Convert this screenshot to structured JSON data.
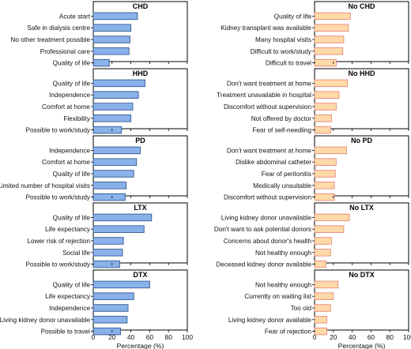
{
  "chart_data": [
    {
      "type": "bar",
      "orientation": "horizontal",
      "title": "CHD",
      "categories": [
        "Acute start",
        "Safe in dialysis centre",
        "No other treatment possible",
        "Professional care",
        "Quality of life"
      ],
      "values": [
        47,
        40,
        39,
        38,
        17
      ],
      "xlim": [
        0,
        100
      ],
      "color": "#8ab2ea",
      "edge_color": "#33598f"
    },
    {
      "type": "bar",
      "orientation": "horizontal",
      "title": "No CHD",
      "categories": [
        "Quality of life",
        "Kidney transplant was available",
        "Many hospital visits",
        "Difficult to work/study",
        "Difficult to travel"
      ],
      "values": [
        38,
        36,
        31,
        30,
        23
      ],
      "xlim": [
        0,
        100
      ],
      "color": "#ffd9a8",
      "edge_color": "#e58a7c"
    },
    {
      "type": "bar",
      "orientation": "horizontal",
      "title": "HHD",
      "categories": [
        "Quality of life",
        "Independence",
        "Comfort at home",
        "Flexibility",
        "Possible to work/study"
      ],
      "values": [
        55,
        48,
        42,
        40,
        30
      ],
      "xlim": [
        0,
        100
      ],
      "color": "#8ab2ea",
      "edge_color": "#33598f"
    },
    {
      "type": "bar",
      "orientation": "horizontal",
      "title": "No HHD",
      "categories": [
        "Don't want treatment at home",
        "Treatment unavailable in hospital",
        "Discomfort without supervision",
        "Not offered by doctor",
        "Fear of self-needling"
      ],
      "values": [
        35,
        26,
        23,
        18,
        17
      ],
      "xlim": [
        0,
        100
      ],
      "color": "#ffd9a8",
      "edge_color": "#e58a7c"
    },
    {
      "type": "bar",
      "orientation": "horizontal",
      "title": "PD",
      "categories": [
        "Independence",
        "Comfort at home",
        "Quality of life",
        "Limited number of hospital visits",
        "Possible to work/study"
      ],
      "values": [
        50,
        46,
        43,
        35,
        34
      ],
      "xlim": [
        0,
        100
      ],
      "color": "#8ab2ea",
      "edge_color": "#33598f"
    },
    {
      "type": "bar",
      "orientation": "horizontal",
      "title": "No PD",
      "categories": [
        "Don't want treatment at home",
        "Dislike abdominal catheter",
        "Fear of peritonitis",
        "Medically unsuitable",
        "Discomfort without supervision"
      ],
      "values": [
        34,
        23,
        22,
        21,
        21
      ],
      "xlim": [
        0,
        100
      ],
      "color": "#ffd9a8",
      "edge_color": "#e58a7c"
    },
    {
      "type": "bar",
      "orientation": "horizontal",
      "title": "LTX",
      "categories": [
        "Quality of life",
        "Life expectancy",
        "Lower risk of rejection",
        "Social life",
        "Possible to work/study"
      ],
      "values": [
        62,
        54,
        32,
        31,
        28
      ],
      "xlim": [
        0,
        100
      ],
      "color": "#8ab2ea",
      "edge_color": "#33598f"
    },
    {
      "type": "bar",
      "orientation": "horizontal",
      "title": "No LTX",
      "categories": [
        "Living kidney donor unavailable",
        "Don't want to ask potential donors",
        "Concerns about donor's health",
        "Not healthy enough",
        "Deceased kidney donor available"
      ],
      "values": [
        37,
        31,
        18,
        17,
        12
      ],
      "xlim": [
        0,
        100
      ],
      "color": "#ffd9a8",
      "edge_color": "#e58a7c"
    },
    {
      "type": "bar",
      "orientation": "horizontal",
      "title": "DTX",
      "categories": [
        "Quality of life",
        "Life expectancy",
        "Independence",
        "Living kidney donor unavailable",
        "Possible to travel"
      ],
      "values": [
        60,
        43,
        37,
        36,
        29
      ],
      "xlim": [
        0,
        100
      ],
      "color": "#8ab2ea",
      "edge_color": "#33598f"
    },
    {
      "type": "bar",
      "orientation": "horizontal",
      "title": "No DTX",
      "categories": [
        "Not healthy enough",
        "Currently on waiting list",
        "Too old",
        "Living kidney donor available",
        "Fear of rejection"
      ],
      "values": [
        25,
        20,
        17,
        13,
        13
      ],
      "xlim": [
        0,
        100
      ],
      "color": "#ffd9a8",
      "edge_color": "#e58a7c"
    }
  ],
  "x_ticks": [
    "0",
    "20",
    "40",
    "60",
    "80",
    "100"
  ],
  "xlabel": "Percentage (%)"
}
